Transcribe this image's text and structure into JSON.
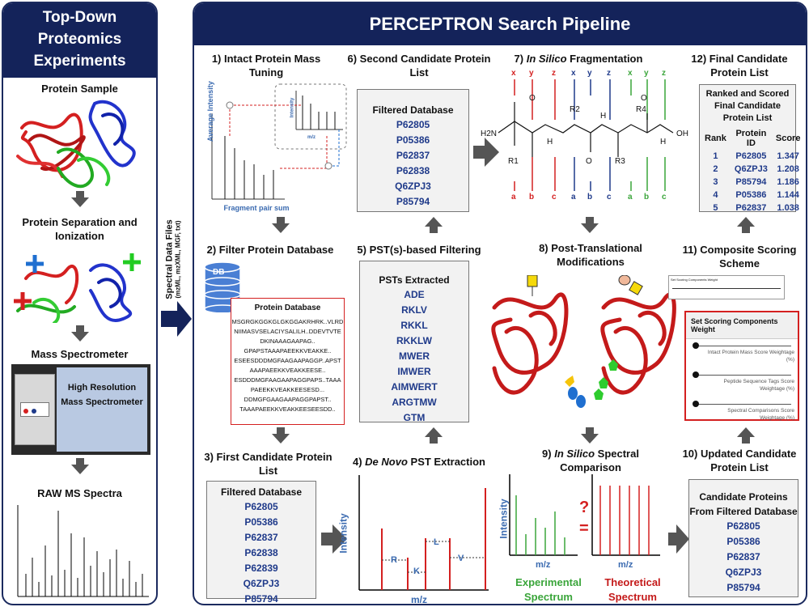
{
  "left": {
    "title": "Top-Down Proteomics Experiments",
    "protein_sample": "Protein Sample",
    "separation": "Protein Separation and Ionization",
    "mass_spec": "Mass Spectrometer",
    "hr_ms": "High Resolution Mass Spectrometer",
    "raw_ms": "RAW MS Spectra"
  },
  "side": {
    "spectral_files": "Spectral Data Files",
    "formats": "(mzML, mzXML, MGF, txt)"
  },
  "main": {
    "title": "PERCEPTRON Search Pipeline",
    "step1": "1) Intact Protein Mass Tuning",
    "step1_ylabel": "Average Intensity",
    "step1_xlabel": "Fragment pair sum",
    "step1_inset_y": "Intensity",
    "step1_inset_x": "m/z",
    "step2": "2) Filter Protein Database",
    "db_icon": "DB",
    "db_title": "Protein Database",
    "db_lines": [
      "MSGRGKGGKGLGKGGAKRHRK..VLRD",
      "NIIMASVSELACIYSALILH..DDEVTVTE",
      "DKINAAAGAAPAG..",
      "GPAPSTAAAPAEEKKVEAKKE..",
      "ESEESDDDMGFAAGAAPAGGP..APST",
      "AAAPAEEKKVEAKKEESE..",
      "ESDDDMGFAAGAAPAGGPAPS..TAAA",
      "PAEEKKVEAKKEESESD...",
      "DDMGFGAAGAAPAGGPAPST..",
      "TAAAPAEEKKVEAKKEESEESDD.."
    ],
    "step3": "3) First Candidate Protein List",
    "step3_head": "Filtered Database",
    "step3_items": [
      "P62805",
      "P05386",
      "P62837",
      "P62838",
      "P62839",
      "Q6ZPJ3",
      "P85794"
    ],
    "step4": "4) De Novo PST Extraction",
    "step4_ylabel": "Intensity",
    "step4_xlabel": "m/z",
    "step4_tags": [
      "R",
      "K",
      "L",
      "V"
    ],
    "step5": "5) PST(s)-based Filtering",
    "step5_head": "PSTs Extracted",
    "step5_items": [
      "ADE",
      "RKLV",
      "RKKL",
      "RKKLW",
      "MWER",
      "IMWER",
      "AIMWERT",
      "ARGTMW",
      "GTM"
    ],
    "step6": "6) Second Candidate Protein List",
    "step6_head": "Filtered Database",
    "step6_items": [
      "P62805",
      "P05386",
      "P62837",
      "P62838",
      "Q6ZPJ3",
      "P85794"
    ],
    "step7": "7) In Silico Fragmentation",
    "step7_chem": {
      "top_ions": [
        "x1",
        "y1",
        "z1",
        "x2",
        "y2",
        "z2",
        "x3",
        "y3",
        "z3"
      ],
      "bottom_ions": [
        "a1",
        "b1",
        "c1",
        "a2",
        "b2",
        "c2",
        "a3",
        "b3",
        "c3"
      ],
      "atoms": [
        "H2N",
        "O",
        "H",
        "R2",
        "O",
        "H",
        "O",
        "H",
        "R4",
        "OH",
        "R1",
        "O",
        "R3",
        "O",
        "N",
        "N",
        "N"
      ]
    },
    "step8": "8) Post-Translational Modifications",
    "step9": "9) In Silico Spectral Comparison",
    "step9_ylabel": "Intensity",
    "step9_xlabel": "m/z",
    "step9_exp": "Experimental Spectrum",
    "step9_theo": "Theoretical Spectrum",
    "step9_q": "?",
    "step9_eq": "=",
    "step10": "10) Updated Candidate Protein List",
    "step10_head": "Candidate Proteins From Filtered Database",
    "step10_items": [
      "P62805",
      "P05386",
      "P62837",
      "Q6ZPJ3",
      "P85794"
    ],
    "step11": "11) Composite Scoring Scheme",
    "step11_dialog_title": "Set Scoring Components Weight",
    "step11_small_title": "Set Scoring Components Weight",
    "step11_sliders": [
      "Intact Protein Mass Score Weightage (%)",
      "Peptide Sequence Tags Score Weightage (%)",
      "Spectral Comparisons Score Weightage (%)"
    ],
    "step12": "12) Final Candidate Protein List",
    "step12_head": "Ranked and Scored Final Candidate Protein List",
    "step12_cols": [
      "Rank",
      "Protein ID",
      "Score"
    ],
    "step12_rows": [
      [
        "1",
        "P62805",
        "1.347"
      ],
      [
        "2",
        "Q6ZPJ3",
        "1.208"
      ],
      [
        "3",
        "P85794",
        "1.186"
      ],
      [
        "4",
        "P05386",
        "1.144"
      ],
      [
        "5",
        "P62837",
        "1.038"
      ]
    ]
  },
  "colors": {
    "navy": "#14235a",
    "red": "#d42020",
    "green": "#3aa53a",
    "blue": "#1f3a8a"
  }
}
